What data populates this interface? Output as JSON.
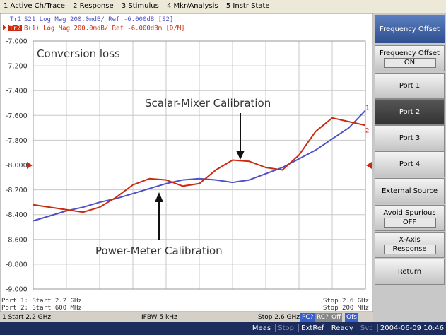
{
  "menu": [
    "1 Active Ch/Trace",
    "2 Response",
    "3 Stimulus",
    "4 Mkr/Analysis",
    "5 Instr State"
  ],
  "trace_header": [
    {
      "label": "Tr1",
      "text": "S21 Log Mag 200.0mdB/ Ref -6.000dB [S2]"
    },
    {
      "label": "Tr2",
      "text": "B(1) Log Mag 200.0mdB/ Ref -6.000dBm [D/M]"
    }
  ],
  "chart_data": {
    "type": "line",
    "annotations": [
      "Conversion loss",
      "Scalar-Mixer Calibration",
      "Power-Meter Calibration"
    ],
    "xlim": [
      2.2,
      2.6
    ],
    "ylim": [
      -9,
      -7
    ],
    "yticks": [
      {
        "value": -7,
        "label": "-7.000"
      },
      {
        "value": -7.2,
        "label": "-7.200"
      },
      {
        "value": -7.4,
        "label": "-7.400"
      },
      {
        "value": -7.6,
        "label": "-7.600"
      },
      {
        "value": -7.8,
        "label": "-7.800"
      },
      {
        "value": -8,
        "label": "-8.000"
      },
      {
        "value": -8.2,
        "label": "-8.200"
      },
      {
        "value": -8.4,
        "label": "-8.400"
      },
      {
        "value": -8.6,
        "label": "-8.600"
      },
      {
        "value": -8.8,
        "label": "-8.800"
      },
      {
        "value": -9,
        "label": "-9.000"
      }
    ],
    "grid": true,
    "x": [
      2.2,
      2.22,
      2.24,
      2.26,
      2.28,
      2.3,
      2.32,
      2.34,
      2.36,
      2.38,
      2.4,
      2.42,
      2.44,
      2.46,
      2.48,
      2.5,
      2.52,
      2.54,
      2.56,
      2.58,
      2.6
    ],
    "series": [
      {
        "name": "1",
        "color": "#5050c8",
        "values": [
          -8.45,
          -8.41,
          -8.37,
          -8.34,
          -8.3,
          -8.27,
          -8.23,
          -8.19,
          -8.15,
          -8.12,
          -8.11,
          -8.12,
          -8.14,
          -8.12,
          -8.07,
          -8.02,
          -7.95,
          -7.88,
          -7.79,
          -7.7,
          -7.56
        ]
      },
      {
        "name": "2",
        "color": "#cc2a10",
        "values": [
          -8.32,
          -8.34,
          -8.36,
          -8.38,
          -8.34,
          -8.26,
          -8.16,
          -8.11,
          -8.12,
          -8.17,
          -8.15,
          -8.04,
          -7.96,
          -7.97,
          -8.02,
          -8.04,
          -7.92,
          -7.73,
          -7.62,
          -7.65,
          -7.68
        ]
      }
    ]
  },
  "footer": {
    "left": [
      "Port 1: Start 2.2 GHz",
      "Port 2: Start 600 MHz"
    ],
    "right": [
      "Stop 2.6 GHz",
      "Stop 200 MHz"
    ]
  },
  "status_bar": {
    "start": "1  Start 2.2 GHz",
    "ifbw": "IFBW 5 kHz",
    "stop": "Stop 2.6 GHz",
    "flags": [
      "PC?",
      "RC?",
      "Off",
      "Ofs"
    ]
  },
  "bottom_bar": [
    "Meas",
    "Stop",
    "ExtRef",
    "Ready",
    "Svc",
    "2004-06-09 10:46"
  ],
  "softkeys": {
    "title": "Frequency Offset",
    "buttons": [
      {
        "label": "Frequency Offset",
        "value": "ON"
      },
      {
        "label": "Port 1"
      },
      {
        "label": "Port 2"
      },
      {
        "label": "Port 3"
      },
      {
        "label": "Port 4"
      },
      {
        "label": "External Source"
      },
      {
        "label": "Avoid Spurious",
        "value": "OFF"
      },
      {
        "label": "X-Axis",
        "value": "Response"
      },
      {
        "label": "Return"
      }
    ]
  }
}
